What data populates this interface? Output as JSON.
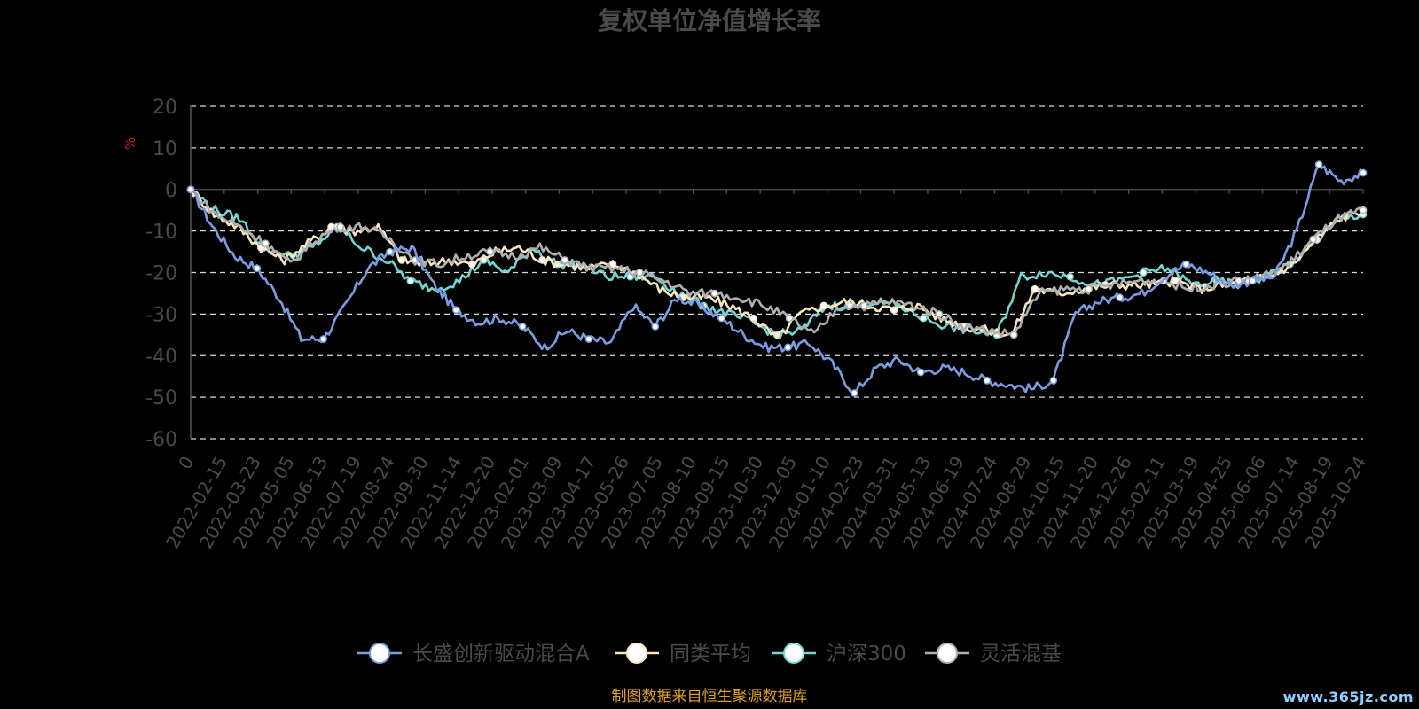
{
  "chart_data": {
    "type": "line",
    "title": "复权单位净值增长率",
    "ylabel": "%",
    "ylim": [
      -60,
      20
    ],
    "yticks": [
      20,
      10,
      0,
      -10,
      -20,
      -30,
      -40,
      -50,
      -60
    ],
    "grid": true,
    "legend_position": "bottom-center",
    "xtick_labels": [
      "0",
      "2022-02-15",
      "2022-03-23",
      "2022-05-05",
      "2022-06-13",
      "2022-07-19",
      "2022-08-24",
      "2022-09-30",
      "2022-11-14",
      "2022-12-20",
      "2023-02-01",
      "2023-03-09",
      "2023-04-17",
      "2023-05-26",
      "2023-07-05",
      "2023-08-10",
      "2023-09-15",
      "2023-10-30",
      "2023-12-05",
      "2024-01-10",
      "2024-02-23",
      "2024-03-31",
      "2024-05-13",
      "2024-06-19",
      "2024-07-24",
      "2024-08-29",
      "2024-10-15",
      "2024-11-20",
      "2024-12-26",
      "2025-02-11",
      "2025-03-19",
      "2025-04-25",
      "2025-06-06",
      "2025-07-14",
      "2025-08-19",
      "2025-10-24"
    ],
    "series": [
      {
        "name": "长盛创新驱动混合A",
        "color": "#7b9ce1",
        "values": [
          0,
          -9,
          -16,
          -19,
          -26,
          -36,
          -36,
          -28,
          -19,
          -15,
          -14,
          -23,
          -29,
          -32,
          -31,
          -33,
          -38,
          -34,
          -36,
          -37,
          -28,
          -33,
          -26,
          -28,
          -31,
          -35,
          -38,
          -38,
          -37,
          -42,
          -49,
          -43,
          -41,
          -44,
          -43,
          -44,
          -46,
          -47,
          -48,
          -46,
          -30,
          -27,
          -26,
          -25,
          -21,
          -18,
          -20,
          -23,
          -22,
          -21,
          -10,
          6,
          2,
          4
        ]
      },
      {
        "name": "同类平均",
        "color": "#fbe5c0",
        "values": [
          0,
          -6,
          -9,
          -14,
          -17,
          -13,
          -9,
          -10,
          -9,
          -17,
          -18,
          -17,
          -18,
          -15,
          -14,
          -17,
          -18,
          -19,
          -18,
          -20,
          -24,
          -26,
          -26,
          -28,
          -31,
          -36,
          -30,
          -28,
          -27,
          -28,
          -29,
          -28,
          -31,
          -33,
          -34,
          -35,
          -24,
          -25,
          -24,
          -23,
          -23,
          -23,
          -22,
          -24,
          -23,
          -22,
          -21,
          -18,
          -12,
          -7,
          -5
        ]
      },
      {
        "name": "沪深300",
        "color": "#72d6d2",
        "values": [
          0,
          -5,
          -7,
          -14,
          -16,
          -14,
          -9,
          -14,
          -17,
          -22,
          -24,
          -22,
          -17,
          -20,
          -14,
          -18,
          -18,
          -21,
          -21,
          -21,
          -25,
          -28,
          -30,
          -32,
          -35,
          -34,
          -28,
          -28,
          -27,
          -28,
          -31,
          -33,
          -34,
          -35,
          -21,
          -20,
          -21,
          -23,
          -22,
          -20,
          -19,
          -23,
          -22,
          -23,
          -21,
          -18,
          -13,
          -7,
          -6
        ]
      },
      {
        "name": "灵活混基",
        "color": "#b0b0b0",
        "values": [
          0,
          -6,
          -9,
          -13,
          -18,
          -12,
          -9,
          -9,
          -12,
          -17,
          -18,
          -16,
          -15,
          -16,
          -14,
          -17,
          -19,
          -19,
          -20,
          -22,
          -25,
          -25,
          -26,
          -28,
          -31,
          -35,
          -28,
          -28,
          -27,
          -28,
          -30,
          -33,
          -34,
          -35,
          -25,
          -24,
          -24,
          -23,
          -22,
          -22,
          -24,
          -23,
          -22,
          -21,
          -18,
          -12,
          -7,
          -5
        ]
      }
    ],
    "source_note": "制图数据来自恒生聚源数据库",
    "watermark": "www.365jz.com"
  }
}
